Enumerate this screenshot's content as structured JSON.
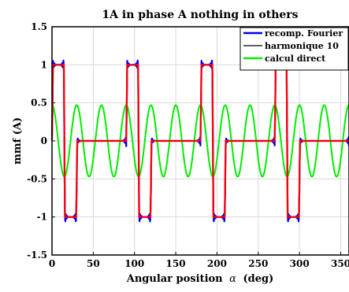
{
  "chart_data": {
    "type": "line",
    "title": "1A in phase A nothing in others",
    "xlabel_text": "Angular position",
    "xlabel_symbol": "α",
    "xlabel_unit": "(deg)",
    "ylabel": "mmf (A)",
    "xlim": [
      0,
      360
    ],
    "ylim": [
      -1.5,
      1.5
    ],
    "xticks": [
      "0",
      "50",
      "100",
      "150",
      "200",
      "250",
      "300",
      "350"
    ],
    "yticks": [
      "1.5",
      "1",
      "0.5",
      "0",
      "-0.5",
      "-1",
      "-1.5"
    ],
    "grid": true,
    "legend_position": "top-right",
    "square_wave": {
      "period_deg": 90,
      "phase_start_deg": 0,
      "high_value": 1,
      "low_value": -1,
      "high_interval_deg": [
        0,
        15
      ],
      "zero_interval_deg": [
        30,
        60
      ],
      "low_interval_deg": [
        15,
        30
      ],
      "ramp_width_deg": 1.2
    },
    "fundamental": {
      "amplitude": 0.47,
      "period_deg": 30,
      "phase_deg": 0
    },
    "series": [
      {
        "name": "recomp. Fourier",
        "color": "#0000ff",
        "style": "ringing"
      },
      {
        "name": "harmonique 10",
        "color": "#000000",
        "style": "thin"
      },
      {
        "name": "calcul direct",
        "color": "#00ee00",
        "style": "sine"
      },
      {
        "name": "",
        "color": "#ff0000",
        "style": "square"
      }
    ]
  }
}
